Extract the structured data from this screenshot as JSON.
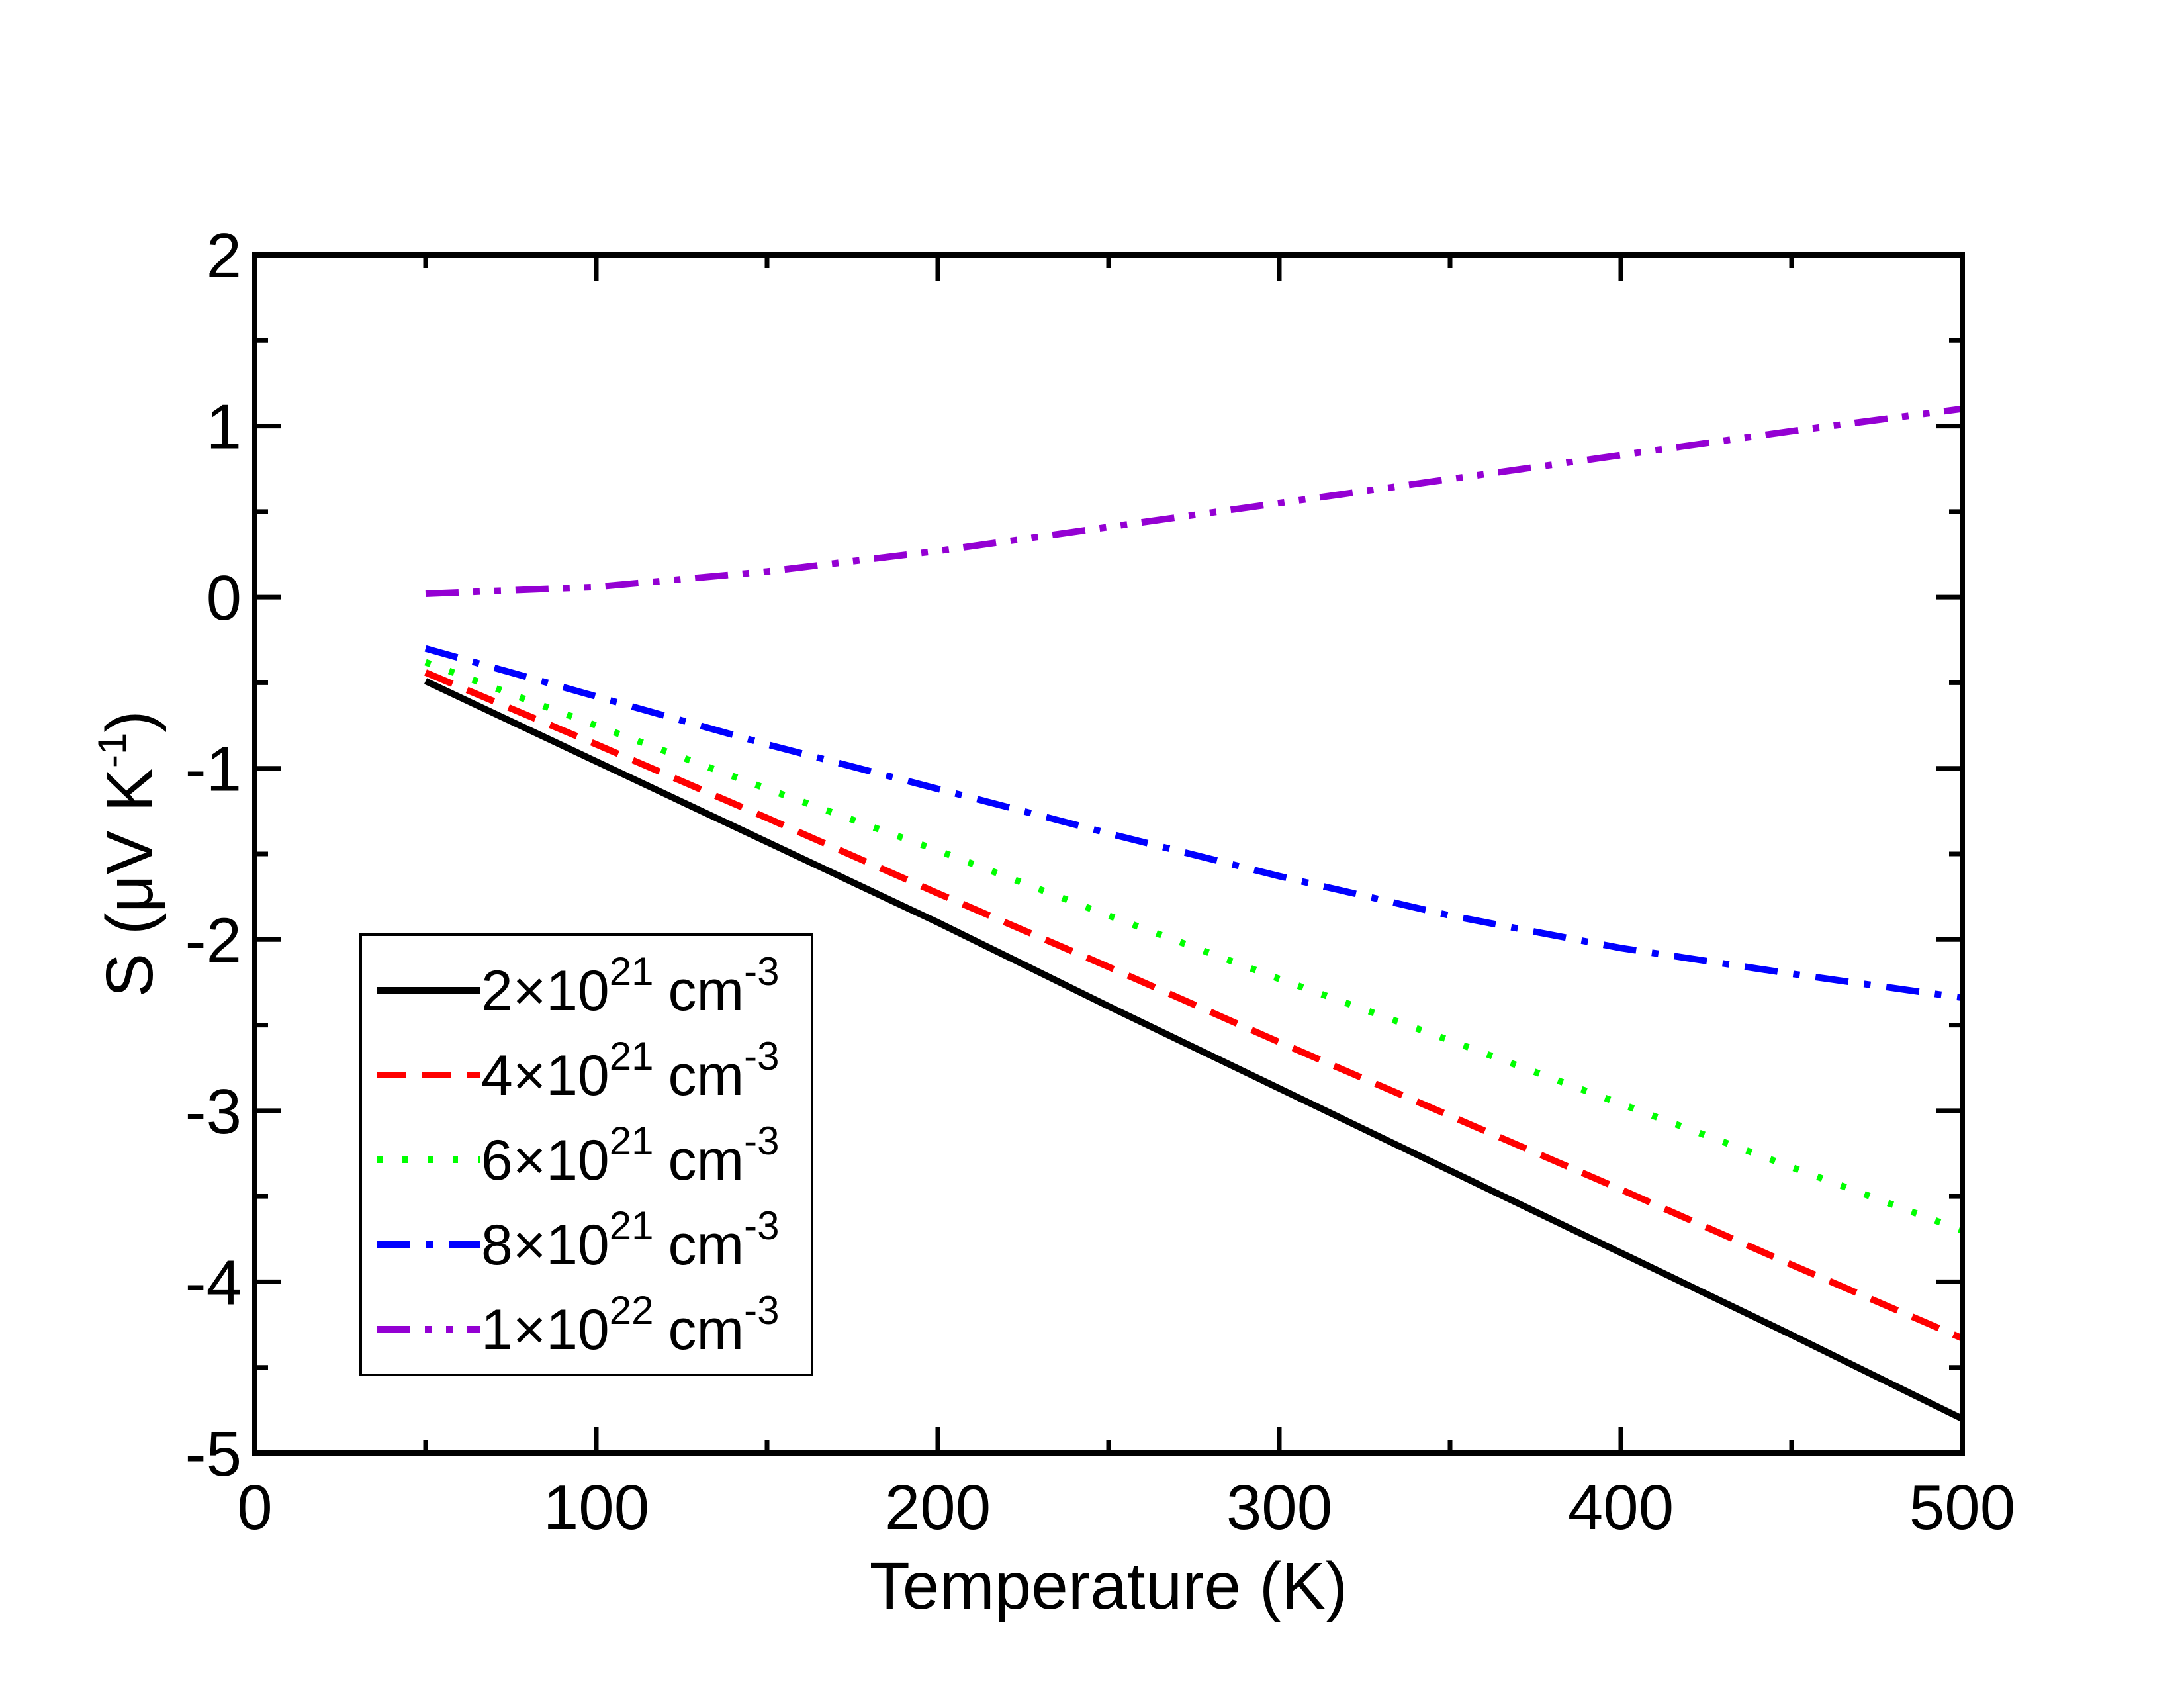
{
  "chart_data": {
    "type": "line",
    "xlabel": "Temperature (K)",
    "ylabel": {
      "prefix": "S (",
      "mu": "μ",
      "unit": "V K",
      "exponent": "-1",
      "suffix": ")"
    },
    "xlim": [
      0,
      500
    ],
    "ylim": [
      -5,
      2
    ],
    "xticks": [
      0,
      100,
      200,
      300,
      400,
      500
    ],
    "xtick_labels": [
      "0",
      "100",
      "200",
      "300",
      "400",
      "500"
    ],
    "yticks": [
      -5,
      -4,
      -3,
      -2,
      -1,
      0,
      1,
      2
    ],
    "ytick_labels": [
      "-5",
      "-4",
      "-3",
      "-2",
      "-1",
      "0",
      "1",
      "2"
    ],
    "x_minor_step": 50,
    "y_minor_step": 0.5,
    "legend_position": "lower-left",
    "series": [
      {
        "name": "2×10^21 cm^-3",
        "legend": {
          "coef": "2",
          "times": "×10",
          "exp": "21",
          "unit": "cm",
          "unit_exp": "-3"
        },
        "color": "#000000",
        "style": "solid",
        "x": [
          50,
          100,
          150,
          200,
          250,
          300,
          350,
          400,
          450,
          500
        ],
        "y": [
          -0.49,
          -0.96,
          -1.43,
          -1.9,
          -2.39,
          -2.87,
          -3.35,
          -3.83,
          -4.31,
          -4.8
        ]
      },
      {
        "name": "4×10^21 cm^-3",
        "legend": {
          "coef": "4",
          "times": "×10",
          "exp": "21",
          "unit": "cm",
          "unit_exp": "-3"
        },
        "color": "#ff0000",
        "style": "dashed",
        "x": [
          50,
          100,
          150,
          200,
          250,
          300,
          350,
          400,
          450,
          500
        ],
        "y": [
          -0.44,
          -0.86,
          -1.29,
          -1.73,
          -2.16,
          -2.6,
          -3.03,
          -3.46,
          -3.9,
          -4.33
        ]
      },
      {
        "name": "6×10^21 cm^-3",
        "legend": {
          "coef": "6",
          "times": "×10",
          "exp": "21",
          "unit": "cm",
          "unit_exp": "-3"
        },
        "color": "#00ff00",
        "style": "dotted",
        "x": [
          50,
          100,
          150,
          200,
          250,
          300,
          350,
          400,
          450,
          500
        ],
        "y": [
          -0.38,
          -0.75,
          -1.12,
          -1.48,
          -1.86,
          -2.23,
          -2.59,
          -2.96,
          -3.33,
          -3.7
        ]
      },
      {
        "name": "8×10^21 cm^-3",
        "legend": {
          "coef": "8",
          "times": "×10",
          "exp": "21",
          "unit": "cm",
          "unit_exp": "-3"
        },
        "color": "#0000ff",
        "style": "dashdot",
        "x": [
          50,
          100,
          150,
          200,
          250,
          300,
          350,
          400,
          450,
          500
        ],
        "y": [
          -0.3,
          -0.58,
          -0.86,
          -1.12,
          -1.38,
          -1.63,
          -1.86,
          -2.05,
          -2.2,
          -2.34
        ]
      },
      {
        "name": "1×10^22 cm^-3",
        "legend": {
          "coef": "1",
          "times": "×10",
          "exp": "22",
          "unit": "cm",
          "unit_exp": "-3"
        },
        "color": "#9400d3",
        "style": "dashdotdot",
        "x": [
          50,
          100,
          150,
          200,
          250,
          300,
          350,
          400,
          450,
          500
        ],
        "y": [
          0.02,
          0.06,
          0.15,
          0.27,
          0.41,
          0.55,
          0.69,
          0.83,
          0.97,
          1.1
        ]
      }
    ]
  }
}
